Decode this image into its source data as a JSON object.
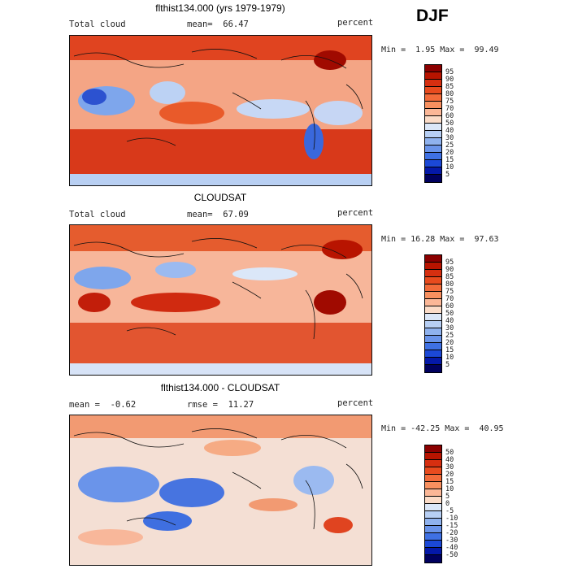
{
  "season": "DJF",
  "panels": [
    {
      "title": "flthist134.000 (yrs 1979-1979)",
      "left_label": "Total cloud",
      "mean_label": "mean=",
      "mean_value": "66.47",
      "units": "percent",
      "min_label": "Min =",
      "min_value": "1.95",
      "max_label": "Max =",
      "max_value": "99.49",
      "colorbar_labels": [
        "95",
        "90",
        "85",
        "80",
        "75",
        "70",
        "60",
        "50",
        "40",
        "30",
        "25",
        "20",
        "15",
        "10",
        "5"
      ],
      "colorbar_colors": [
        "#8b0000",
        "#b81400",
        "#d62f10",
        "#e84b1e",
        "#f26b3a",
        "#f8905f",
        "#fbb797",
        "#fbdcc8",
        "#dbe7f8",
        "#b7cff4",
        "#8fb2ee",
        "#6a94ea",
        "#3f71e4",
        "#1b48d6",
        "#0418a8",
        "#00005e"
      ]
    },
    {
      "title": "CLOUDSAT",
      "left_label": "Total cloud",
      "mean_label": "mean=",
      "mean_value": "67.09",
      "units": "percent",
      "min_label": "Min =",
      "min_value": "16.28",
      "max_label": "Max =",
      "max_value": "97.63",
      "colorbar_labels": [
        "95",
        "90",
        "85",
        "80",
        "75",
        "70",
        "60",
        "50",
        "40",
        "30",
        "25",
        "20",
        "15",
        "10",
        "5"
      ],
      "colorbar_colors": [
        "#8b0000",
        "#b81400",
        "#d62f10",
        "#e84b1e",
        "#f26b3a",
        "#f8905f",
        "#fbb797",
        "#fbdcc8",
        "#dbe7f8",
        "#b7cff4",
        "#8fb2ee",
        "#6a94ea",
        "#3f71e4",
        "#1b48d6",
        "#0418a8",
        "#00005e"
      ]
    },
    {
      "title": "flthist134.000 - CLOUDSAT",
      "left_label": "mean =",
      "mean_label": "rmse =",
      "mean_value": "11.27",
      "left_value": "-0.62",
      "units": "percent",
      "min_label": "Min =",
      "min_value": "-42.25",
      "max_label": "Max =",
      "max_value": "40.95",
      "colorbar_labels": [
        "50",
        "40",
        "30",
        "20",
        "15",
        "10",
        "5",
        "0",
        "-5",
        "-10",
        "-15",
        "-20",
        "-30",
        "-40",
        "-50"
      ],
      "colorbar_colors": [
        "#8b0000",
        "#b81400",
        "#d62f10",
        "#e84b1e",
        "#f26b3a",
        "#f8905f",
        "#fbb797",
        "#fbdcc8",
        "#dbe7f8",
        "#b7cff4",
        "#8fb2ee",
        "#6a94ea",
        "#3f71e4",
        "#1b48d6",
        "#0418a8",
        "#00005e"
      ]
    }
  ]
}
